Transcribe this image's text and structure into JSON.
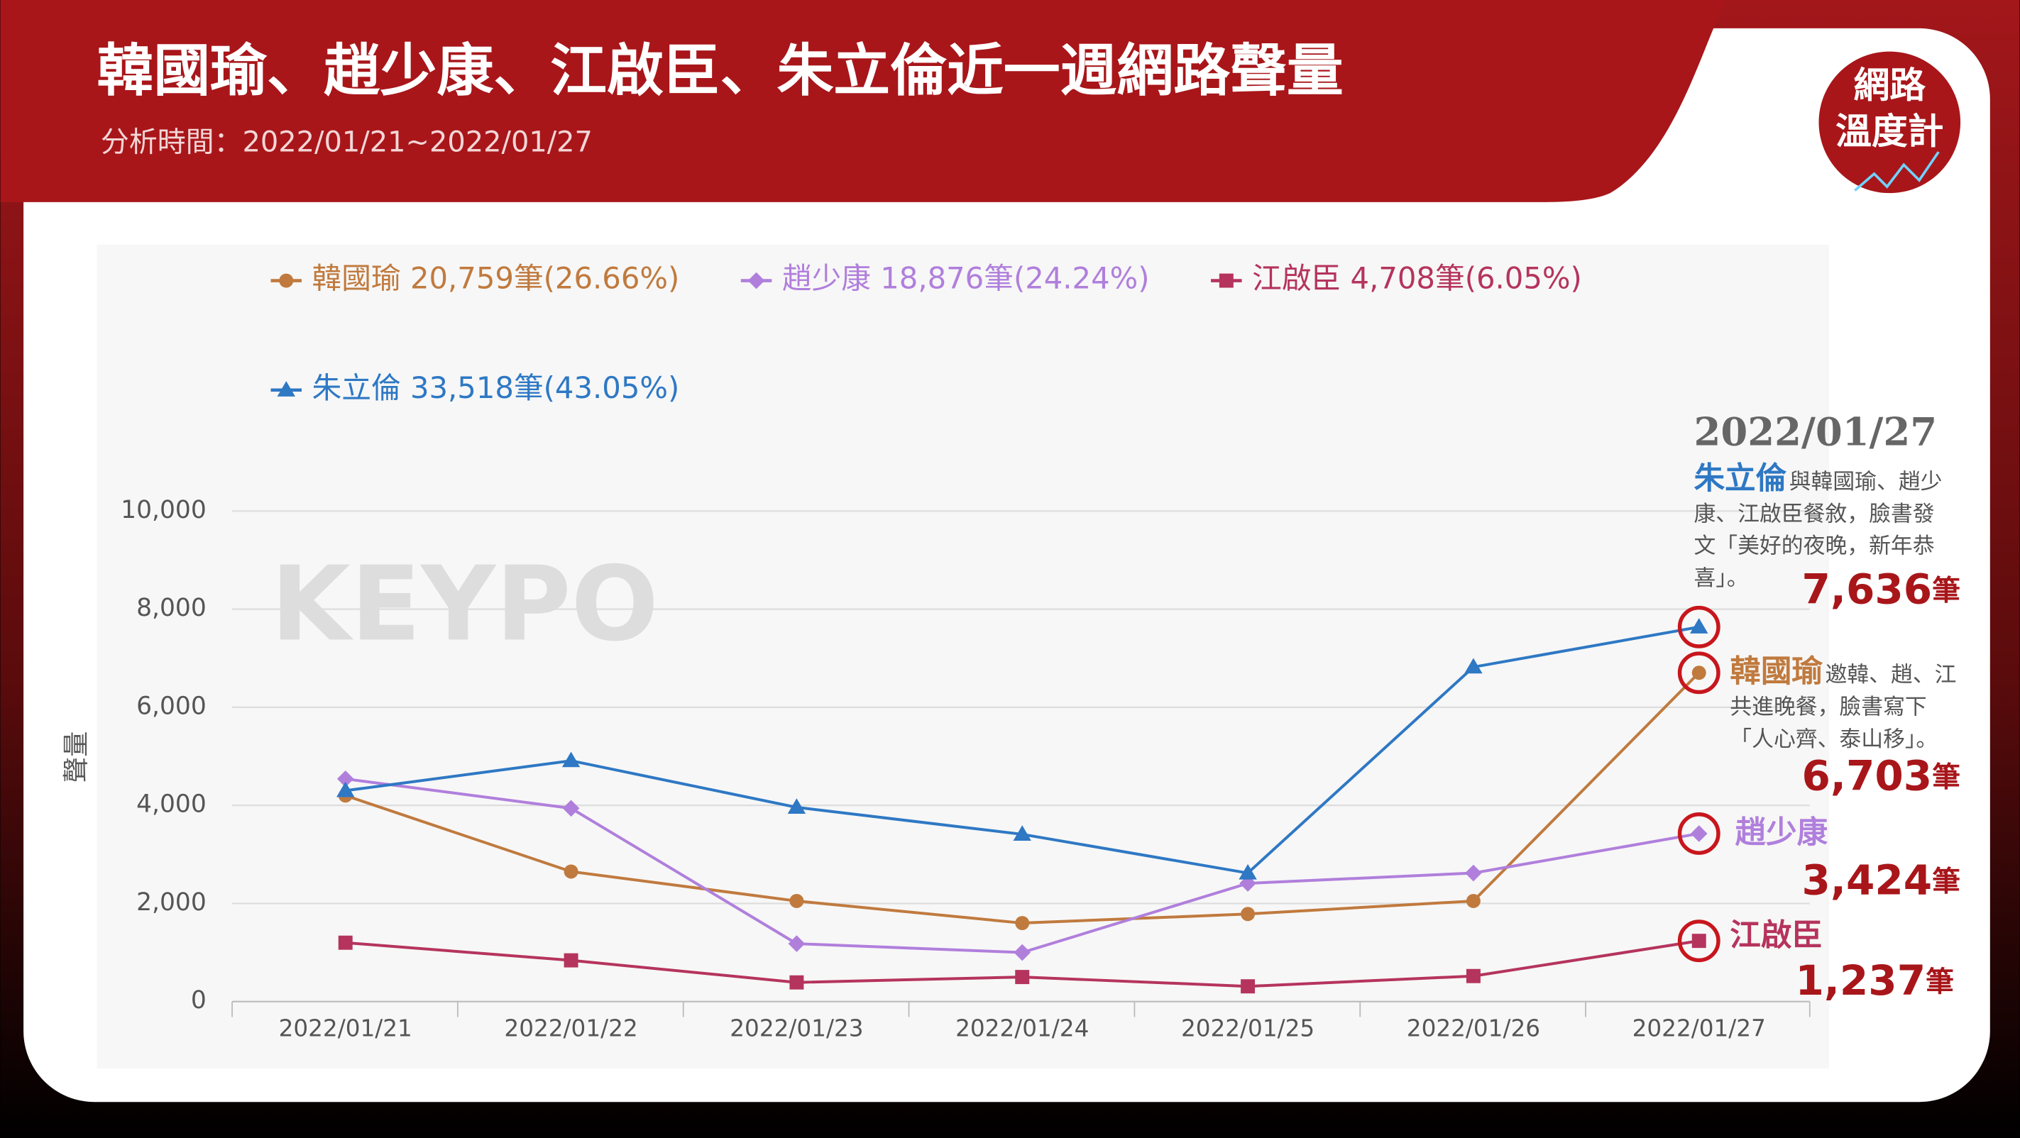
{
  "header": {
    "title": "韓國瑜、趙少康、江啟臣、朱立倫近一週網路聲量",
    "subtitle": "分析時間：2022/01/21~2022/01/27",
    "logo": [
      "網路",
      "溫度計"
    ]
  },
  "watermark": "KEYPO",
  "chart_data": {
    "type": "line",
    "y_label": "聲量",
    "categories": [
      "2022/01/21",
      "2022/01/22",
      "2022/01/23",
      "2022/01/24",
      "2022/01/25",
      "2022/01/26",
      "2022/01/27"
    ],
    "series": [
      {
        "name": "韓國瑜",
        "total_label": "20,759筆(26.66%)",
        "color": "#c07a3e",
        "marker": "circle",
        "values": [
          4200,
          2650,
          2050,
          1600,
          1785,
          2050,
          6703
        ]
      },
      {
        "name": "趙少康",
        "total_label": "18,876筆(24.24%)",
        "color": "#b07fdc",
        "marker": "diamond",
        "values": [
          4540,
          3940,
          1180,
          1000,
          2410,
          2620,
          3424
        ]
      },
      {
        "name": "江啟臣",
        "total_label": "4,708筆(6.05%)",
        "color": "#b5345d",
        "marker": "square",
        "values": [
          1200,
          840,
          390,
          500,
          310,
          520,
          1237
        ]
      },
      {
        "name": "朱立倫",
        "total_label": "33,518筆(43.05%)",
        "color": "#2e78c4",
        "marker": "triangle",
        "values": [
          4300,
          4910,
          3960,
          3410,
          2620,
          6820,
          7636
        ]
      }
    ],
    "ylim": [
      0,
      10000
    ],
    "yticks": [
      0,
      {
        "value": 2000,
        "label": "2,000"
      },
      {
        "value": 4000,
        "label": "4,000"
      },
      {
        "value": 6000,
        "label": "6,000"
      },
      {
        "value": 8000,
        "label": "8,000"
      },
      {
        "value": 10000,
        "label": "10,000"
      }
    ],
    "grid": true,
    "annotation_date": "2022/01/27",
    "annotations": [
      {
        "series": 3,
        "name": "朱立倫",
        "text_lines": [
          "與韓國瑜、趙少",
          "康、江啟臣餐敘，臉書發",
          "文「美好的夜晚，新年恭",
          "喜」。"
        ],
        "value_label": "7,636",
        "unit": "筆"
      },
      {
        "series": 0,
        "name": "韓國瑜",
        "text_lines": [
          "邀韓、趙、江",
          "共進晚餐，臉書寫下",
          "「人心齊、泰山移」。"
        ],
        "value_label": "6,703",
        "unit": "筆"
      },
      {
        "series": 1,
        "name": "趙少康",
        "text_lines": [],
        "value_label": "3,424",
        "unit": "筆"
      },
      {
        "series": 2,
        "name": "江啟臣",
        "text_lines": [],
        "value_label": "1,237",
        "unit": "筆"
      }
    ]
  }
}
